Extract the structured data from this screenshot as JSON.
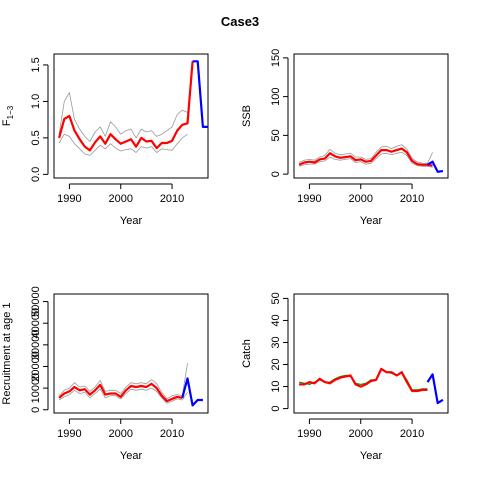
{
  "chart_data": {
    "title": "Case3",
    "colors": {
      "estimate": "#ff0000",
      "projection": "#0000ff",
      "bounds": "#999999",
      "observed": "#009900",
      "axis": "#000000"
    },
    "panels": [
      {
        "type": "line",
        "name": "F",
        "ylabel": "F1−3",
        "ylabel_main": "F",
        "ylabel_sub": "1−3",
        "xlabel": "Year",
        "xlim": [
          1987,
          2017
        ],
        "ylim": [
          -0.05,
          1.65
        ],
        "xticks": [
          1990,
          2000,
          2010
        ],
        "yticks": [
          0.0,
          0.5,
          1.0,
          1.5
        ],
        "ytick_labels": [
          "0.0",
          "0.5",
          "1.0",
          "1.5"
        ],
        "series": [
          {
            "role": "upper",
            "x": [
              1988,
              1989,
              1990,
              1991,
              1992,
              1993,
              1994,
              1995,
              1996,
              1997,
              1998,
              1999,
              2000,
              2001,
              2002,
              2003,
              2004,
              2005,
              2006,
              2007,
              2008,
              2009,
              2010,
              2011,
              2012,
              2013
            ],
            "values": [
              0.55,
              1.0,
              1.12,
              0.75,
              0.62,
              0.52,
              0.45,
              0.58,
              0.65,
              0.52,
              0.72,
              0.65,
              0.55,
              0.6,
              0.62,
              0.5,
              0.62,
              0.58,
              0.6,
              0.52,
              0.55,
              0.6,
              0.65,
              0.82,
              0.88,
              0.85
            ]
          },
          {
            "role": "lower",
            "x": [
              1988,
              1989,
              1990,
              1991,
              1992,
              1993,
              1994,
              1995,
              1996,
              1997,
              1998,
              1999,
              2000,
              2001,
              2002,
              2003,
              2004,
              2005,
              2006,
              2007,
              2008,
              2009,
              2010,
              2011,
              2012,
              2013
            ],
            "values": [
              0.43,
              0.55,
              0.52,
              0.42,
              0.35,
              0.28,
              0.26,
              0.33,
              0.4,
              0.35,
              0.42,
              0.36,
              0.32,
              0.34,
              0.35,
              0.3,
              0.38,
              0.36,
              0.38,
              0.3,
              0.35,
              0.34,
              0.33,
              0.42,
              0.5,
              0.55
            ]
          },
          {
            "role": "estimate",
            "x": [
              1988,
              1989,
              1990,
              1991,
              1992,
              1993,
              1994,
              1995,
              1996,
              1997,
              1998,
              1999,
              2000,
              2001,
              2002,
              2003,
              2004,
              2005,
              2006,
              2007,
              2008,
              2009,
              2010,
              2011,
              2012,
              2013,
              2014
            ],
            "values": [
              0.5,
              0.76,
              0.8,
              0.6,
              0.48,
              0.38,
              0.33,
              0.44,
              0.52,
              0.42,
              0.55,
              0.48,
              0.42,
              0.45,
              0.48,
              0.38,
              0.5,
              0.45,
              0.46,
              0.36,
              0.43,
              0.43,
              0.46,
              0.6,
              0.68,
              0.7,
              1.55
            ]
          },
          {
            "role": "projection",
            "x": [
              2014,
              2015,
              2016,
              2017
            ],
            "values": [
              1.55,
              1.55,
              0.65,
              0.65
            ]
          }
        ]
      },
      {
        "type": "line",
        "name": "SSB",
        "ylabel": "SSB",
        "xlabel": "Year",
        "xlim": [
          1987,
          2017
        ],
        "ylim": [
          -5,
          155
        ],
        "xticks": [
          1990,
          2000,
          2010
        ],
        "yticks": [
          0,
          50,
          100,
          150
        ],
        "ytick_labels": [
          "0",
          "50",
          "100",
          "150"
        ],
        "series": [
          {
            "role": "upper",
            "x": [
              1988,
              1989,
              1990,
              1991,
              1992,
              1993,
              1994,
              1995,
              1996,
              1997,
              1998,
              1999,
              2000,
              2001,
              2002,
              2003,
              2004,
              2005,
              2006,
              2007,
              2008,
              2009,
              2010,
              2011,
              2012,
              2013,
              2014
            ],
            "values": [
              15,
              18,
              19,
              18,
              22,
              24,
              32,
              27,
              25,
              26,
              27,
              22,
              22,
              19,
              20,
              28,
              35,
              36,
              33,
              36,
              38,
              32,
              20,
              16,
              14,
              14,
              28
            ]
          },
          {
            "role": "lower",
            "x": [
              1988,
              1989,
              1990,
              1991,
              1992,
              1993,
              1994,
              1995,
              1996,
              1997,
              1998,
              1999,
              2000,
              2001,
              2002,
              2003,
              2004,
              2005,
              2006,
              2007,
              2008,
              2009,
              2010,
              2011,
              2012,
              2013,
              2014
            ],
            "values": [
              10,
              12,
              13,
              13,
              16,
              17,
              22,
              19,
              18,
              19,
              20,
              15,
              16,
              13,
              14,
              20,
              26,
              27,
              25,
              27,
              28,
              24,
              14,
              11,
              10,
              10,
              9
            ]
          },
          {
            "role": "estimate",
            "x": [
              1988,
              1989,
              1990,
              1991,
              1992,
              1993,
              1994,
              1995,
              1996,
              1997,
              1998,
              1999,
              2000,
              2001,
              2002,
              2003,
              2004,
              2005,
              2006,
              2007,
              2008,
              2009,
              2010,
              2011,
              2012,
              2013,
              2014
            ],
            "values": [
              12,
              15,
              16,
              15,
              19,
              20,
              27,
              23,
              21,
              22,
              23,
              18,
              19,
              16,
              17,
              24,
              31,
              31,
              29,
              31,
              33,
              28,
              17,
              13,
              12,
              12,
              11
            ]
          },
          {
            "role": "projection",
            "x": [
              2013,
              2014,
              2015,
              2016
            ],
            "values": [
              12,
              16,
              3,
              4
            ]
          }
        ]
      },
      {
        "type": "line",
        "name": "Recruitment",
        "ylabel": "Recruitment at age 1",
        "xlabel": "Year",
        "xlim": [
          1987,
          2017
        ],
        "ylim": [
          -1500,
          53500
        ],
        "xticks": [
          1990,
          2000,
          2010
        ],
        "yticks": [
          0,
          10000,
          20000,
          30000,
          40000,
          50000
        ],
        "ytick_labels": [
          "0",
          "",
          "20000",
          "",
          "40000",
          ""
        ],
        "ytick_labels_alt": [
          "",
          "10000",
          "",
          "30000",
          "",
          "50000"
        ],
        "series": [
          {
            "role": "upper",
            "x": [
              1988,
              1989,
              1990,
              1991,
              1992,
              1993,
              1994,
              1995,
              1996,
              1997,
              1998,
              1999,
              2000,
              2001,
              2002,
              2003,
              2004,
              2005,
              2006,
              2007,
              2008,
              2009,
              2010,
              2011,
              2012,
              2013
            ],
            "values": [
              6500,
              9000,
              10000,
              12500,
              10500,
              11000,
              8500,
              10500,
              13500,
              8500,
              9000,
              9000,
              7500,
              10500,
              12500,
              12000,
              12500,
              12000,
              14000,
              12000,
              8000,
              5000,
              6500,
              7000,
              6500,
              21500
            ]
          },
          {
            "role": "lower",
            "x": [
              1988,
              1989,
              1990,
              1991,
              1992,
              1993,
              1994,
              1995,
              1996,
              1997,
              1998,
              1999,
              2000,
              2001,
              2002,
              2003,
              2004,
              2005,
              2006,
              2007,
              2008,
              2009,
              2010,
              2011,
              2012,
              2013
            ],
            "values": [
              4500,
              6000,
              7000,
              9000,
              7500,
              8000,
              5500,
              7500,
              9500,
              5500,
              6500,
              6500,
              5000,
              7500,
              9500,
              9000,
              9500,
              9000,
              10000,
              8500,
              5500,
              3000,
              4000,
              5000,
              4500,
              8000
            ]
          },
          {
            "role": "estimate",
            "x": [
              1988,
              1989,
              1990,
              1991,
              1992,
              1993,
              1994,
              1995,
              1996,
              1997,
              1998,
              1999,
              2000,
              2001,
              2002,
              2003,
              2004,
              2005,
              2006,
              2007,
              2008,
              2009,
              2010,
              2011,
              2012
            ],
            "values": [
              5500,
              7500,
              8500,
              10500,
              9000,
              9500,
              7000,
              9000,
              11500,
              7000,
              7500,
              7500,
              6000,
              9000,
              11000,
              10500,
              11000,
              10500,
              12000,
              10000,
              6500,
              4000,
              5000,
              6000,
              5500
            ]
          },
          {
            "role": "projection",
            "x": [
              2012,
              2013,
              2014,
              2015,
              2016
            ],
            "values": [
              5500,
              14500,
              2000,
              4500,
              4500
            ]
          }
        ]
      },
      {
        "type": "line",
        "name": "Catch",
        "ylabel": "Catch",
        "xlabel": "Year",
        "xlim": [
          1987,
          2017
        ],
        "ylim": [
          -2,
          52
        ],
        "xticks": [
          1990,
          2000,
          2010
        ],
        "yticks": [
          0,
          10,
          20,
          30,
          40,
          50
        ],
        "ytick_labels": [
          "0",
          "10",
          "",
          "30",
          "",
          "50"
        ],
        "ytick_labels_alt": [
          "",
          "",
          "20",
          "",
          "40",
          ""
        ],
        "series": [
          {
            "role": "observed",
            "x": [
              1988,
              1989,
              1990,
              1991,
              1992,
              1993,
              1994,
              1995,
              1996,
              1997,
              1998,
              1999,
              2000,
              2001,
              2002,
              2003,
              2004,
              2005,
              2006,
              2007,
              2008,
              2009,
              2010,
              2011,
              2012,
              2013
            ],
            "values": [
              12,
              11.5,
              11,
              12,
              13,
              12,
              12,
              13.5,
              14.5,
              15,
              15,
              11.5,
              11,
              11.5,
              13,
              13,
              18,
              16.5,
              16,
              15,
              16.5,
              13,
              8.5,
              8.5,
              9,
              9
            ]
          },
          {
            "role": "estimate",
            "x": [
              1988,
              1989,
              1990,
              1991,
              1992,
              1993,
              1994,
              1995,
              1996,
              1997,
              1998,
              1999,
              2000,
              2001,
              2002,
              2003,
              2004,
              2005,
              2006,
              2007,
              2008,
              2009,
              2010,
              2011,
              2012,
              2013
            ],
            "values": [
              11,
              11,
              12,
              11.5,
              13.5,
              12,
              11.5,
              13,
              14,
              14.5,
              15,
              11,
              10,
              11,
              12.5,
              13,
              18,
              16.5,
              16.5,
              15,
              16.5,
              12,
              8,
              8,
              8.5,
              8.5
            ]
          },
          {
            "role": "projection",
            "x": [
              2013,
              2014,
              2015,
              2016
            ],
            "values": [
              12,
              15.5,
              2.5,
              4
            ]
          }
        ]
      }
    ]
  }
}
